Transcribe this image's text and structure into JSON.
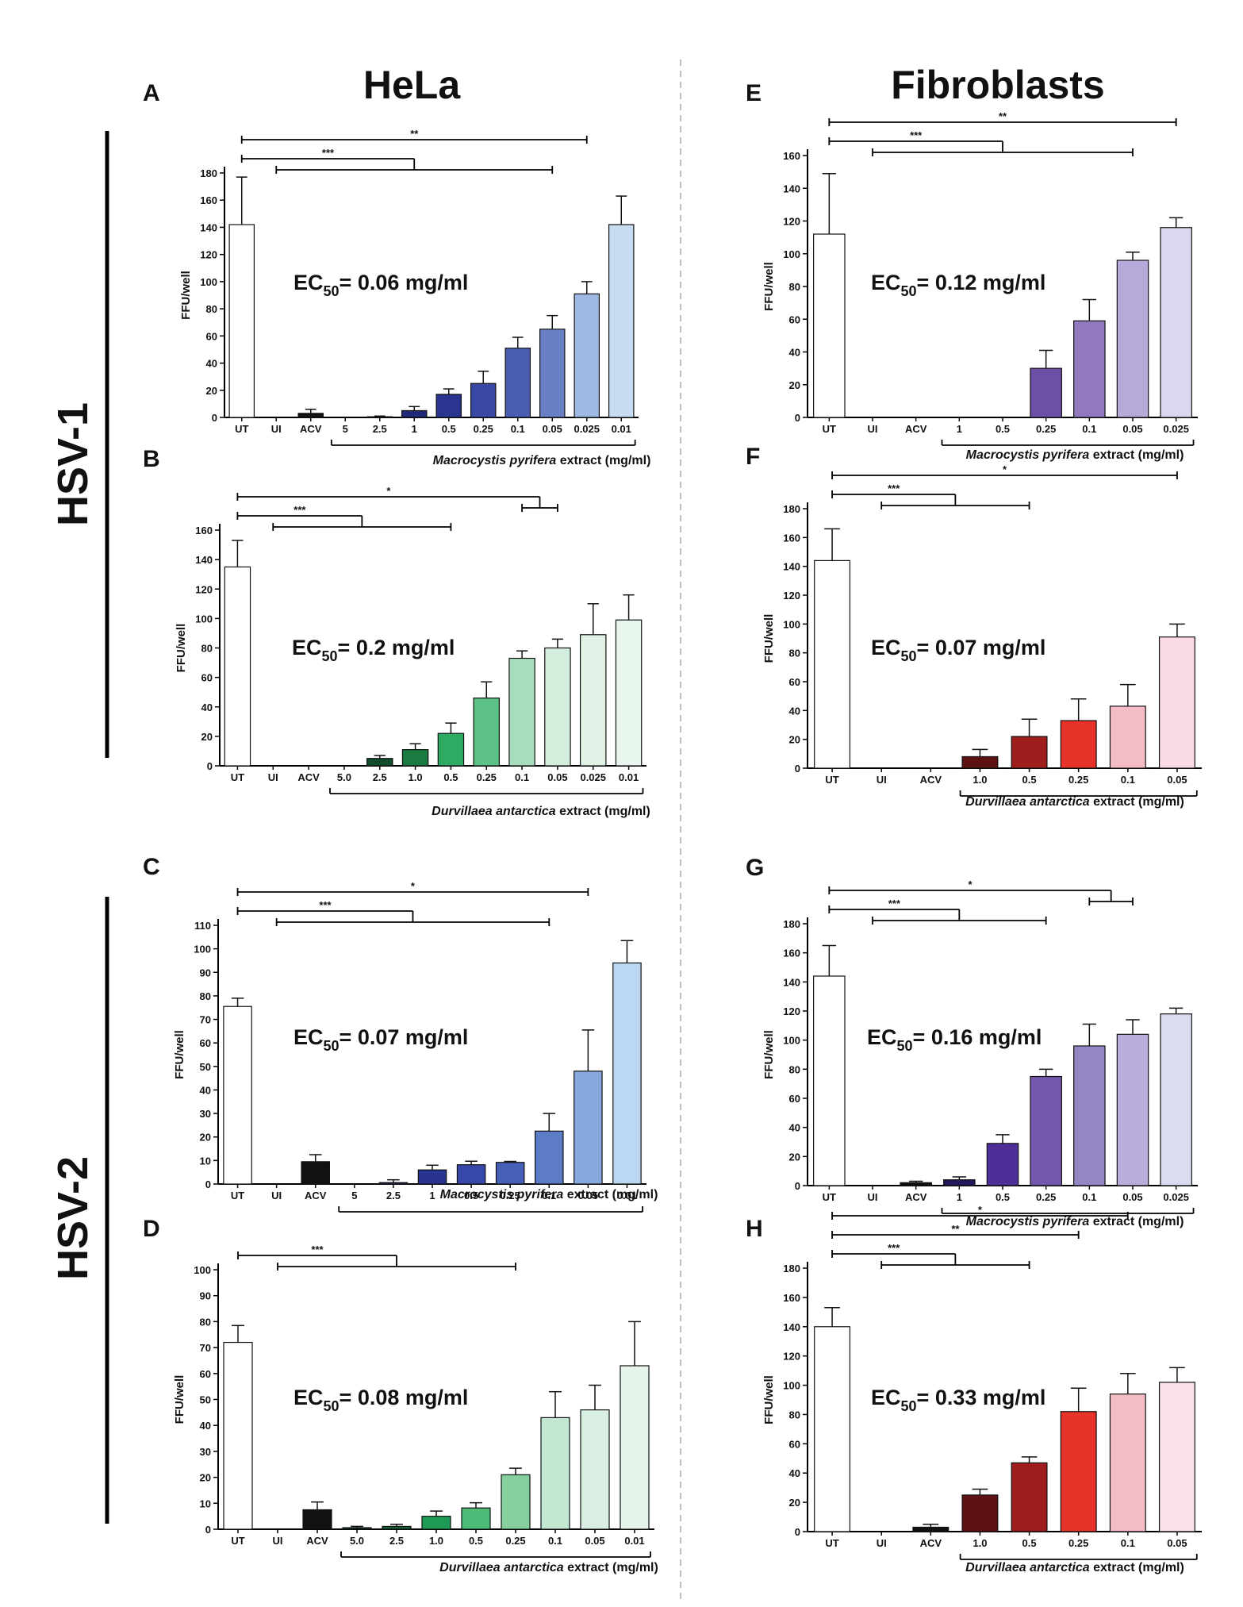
{
  "column_titles": [
    "HeLa",
    "Fibroblasts"
  ],
  "row_titles": [
    "HSV-1",
    "HSV-2"
  ],
  "chart_data": [
    {
      "panel": "A",
      "type": "bar",
      "ylabel": "FFU/well",
      "ylim": [
        0,
        180
      ],
      "ystep": 20,
      "ec50_prefix": "EC",
      "ec50_sub": "50",
      "ec50_value": "= 0.06 mg/ml",
      "xlabel_italic": "Macrocystis pyrifera",
      "xlabel_rest": " extract (mg/ml)",
      "categories": [
        "UT",
        "UI",
        "ACV",
        "5",
        "2.5",
        "1",
        "0.5",
        "0.25",
        "0.1",
        "0.05",
        "0.025",
        "0.01"
      ],
      "values": [
        142,
        0,
        3,
        0,
        0.5,
        5,
        17,
        25,
        51,
        65,
        91,
        142
      ],
      "errors": [
        35,
        0,
        3,
        0,
        0.5,
        3,
        4,
        9,
        8,
        10,
        9,
        21
      ],
      "colors": [
        "#ffffff",
        "#ffffff",
        "#111111",
        "#ffffff",
        "#1b2070",
        "#20287a",
        "#2a3590",
        "#3848a3",
        "#4a5db1",
        "#6a80c6",
        "#9fb8e3",
        "#c7dcf1"
      ],
      "extract_range": [
        3,
        11
      ],
      "sig": [
        {
          "label": "**",
          "type": "simple",
          "from": 0,
          "to": 10
        },
        {
          "label": "***",
          "type": "bracket",
          "from": 0,
          "to1": 1,
          "to2": 9
        }
      ]
    },
    {
      "panel": "B",
      "type": "bar",
      "ylabel": "FFU/well",
      "ylim": [
        0,
        160
      ],
      "ystep": 20,
      "ec50_prefix": "EC",
      "ec50_sub": "50",
      "ec50_value": "= 0.2 mg/ml",
      "xlabel_italic": "Durvillaea antarctica",
      "xlabel_rest": " extract (mg/ml)",
      "categories": [
        "UT",
        "UI",
        "ACV",
        "5.0",
        "2.5",
        "1.0",
        "0.5",
        "0.25",
        "0.1",
        "0.05",
        "0.025",
        "0.01"
      ],
      "values": [
        135,
        0,
        0,
        0,
        5,
        11,
        22,
        46,
        73,
        80,
        89,
        99
      ],
      "errors": [
        18,
        0,
        0,
        0,
        2,
        4,
        7,
        11,
        5,
        6,
        21,
        17
      ],
      "colors": [
        "#ffffff",
        "#ffffff",
        "#ffffff",
        "#ffffff",
        "#0f4d2a",
        "#1a7a40",
        "#2eaa62",
        "#5cc285",
        "#a7dcbd",
        "#d3eedd",
        "#e1f3e7",
        "#e9f6ee"
      ],
      "extract_range": [
        3,
        11
      ],
      "sig": [
        {
          "label": "*",
          "type": "bracket",
          "from": 0,
          "to1": 8,
          "to2": 9
        },
        {
          "label": "***",
          "type": "bracket",
          "from": 0,
          "to1": 1,
          "to2": 6
        }
      ]
    },
    {
      "panel": "C",
      "type": "bar",
      "ylabel": "FFU/well",
      "ylim": [
        0,
        110
      ],
      "ystep": 10,
      "ec50_prefix": "EC",
      "ec50_sub": "50",
      "ec50_value": "= 0.07 mg/ml",
      "xlabel_italic": "Macrocystis pyrifera",
      "xlabel_rest": " extract (mg/ml)",
      "categories": [
        "UT",
        "UI",
        "ACV",
        "5",
        "2.5",
        "1",
        "0.5",
        "0.25",
        "0.1",
        "0.05",
        "0.01"
      ],
      "values": [
        75.5,
        0,
        9.5,
        0,
        0.6,
        6,
        8.2,
        9.2,
        22.5,
        48,
        94
      ],
      "errors": [
        3.5,
        0,
        3,
        0,
        1.2,
        2,
        1.5,
        0.4,
        7.5,
        17.5,
        9.5
      ],
      "colors": [
        "#ffffff",
        "#ffffff",
        "#111111",
        "#ffffff",
        "#1b2070",
        "#28338f",
        "#3748a8",
        "#4560b6",
        "#5d7cc6",
        "#87a8dd",
        "#bcd7f1"
      ],
      "extract_range": [
        3,
        10
      ],
      "sig": [
        {
          "label": "*",
          "type": "simple",
          "from": 0,
          "to": 9
        },
        {
          "label": "***",
          "type": "bracket",
          "from": 0,
          "to1": 1,
          "to2": 8
        }
      ]
    },
    {
      "panel": "D",
      "type": "bar",
      "ylabel": "FFU/well",
      "ylim": [
        0,
        100
      ],
      "ystep": 10,
      "ec50_prefix": "EC",
      "ec50_sub": "50",
      "ec50_value": "= 0.08 mg/ml",
      "xlabel_italic": "Durvillaea antarctica",
      "xlabel_rest": " extract (mg/ml)",
      "categories": [
        "UT",
        "UI",
        "ACV",
        "5.0",
        "2.5",
        "1.0",
        "0.5",
        "0.25",
        "0.1",
        "0.05",
        "0.01"
      ],
      "values": [
        72,
        0,
        7.5,
        0.6,
        1.1,
        5,
        8.2,
        21,
        43,
        46,
        63
      ],
      "errors": [
        6.5,
        0,
        3,
        0.5,
        0.8,
        2,
        2,
        2.5,
        10,
        9.5,
        17
      ],
      "colors": [
        "#ffffff",
        "#ffffff",
        "#111111",
        "#0d3d22",
        "#145c33",
        "#1f9a55",
        "#4dbb77",
        "#86cf9f",
        "#c4e7d1",
        "#d8efe1",
        "#e6f5ec"
      ],
      "extract_range": [
        3,
        10
      ],
      "sig": [
        {
          "label": "***",
          "type": "bracket",
          "from": 0,
          "to1": 1,
          "to2": 7
        }
      ]
    },
    {
      "panel": "E",
      "type": "bar",
      "ylabel": "FFU/well",
      "ylim": [
        0,
        160
      ],
      "ystep": 20,
      "ec50_prefix": "EC",
      "ec50_sub": "50",
      "ec50_value": "= 0.12 mg/ml",
      "xlabel_italic": "Macrocystis pyrifera",
      "xlabel_rest": " extract (mg/ml)",
      "categories": [
        "UT",
        "UI",
        "ACV",
        "1",
        "0.5",
        "0.25",
        "0.1",
        "0.05",
        "0.025"
      ],
      "values": [
        112,
        0,
        0,
        0,
        0,
        30,
        59,
        96,
        116
      ],
      "errors": [
        37,
        0,
        0,
        0,
        0,
        11,
        13,
        5,
        6
      ],
      "colors": [
        "#ffffff",
        "#ffffff",
        "#ffffff",
        "#ffffff",
        "#ffffff",
        "#6d4fa8",
        "#9079bd",
        "#b7a9d9",
        "#dad7ef"
      ],
      "extract_range": [
        3,
        8
      ],
      "sig": [
        {
          "label": "**",
          "type": "simple",
          "from": 0,
          "to": 8
        },
        {
          "label": "***",
          "type": "bracket",
          "from": 0,
          "to1": 1,
          "to2": 7
        }
      ]
    },
    {
      "panel": "F",
      "type": "bar",
      "ylabel": "FFU/well",
      "ylim": [
        0,
        180
      ],
      "ystep": 20,
      "ec50_prefix": "EC",
      "ec50_sub": "50",
      "ec50_value": "= 0.07 mg/ml",
      "xlabel_italic": "Durvillaea antarctica",
      "xlabel_rest": " extract (mg/ml)",
      "categories": [
        "UT",
        "UI",
        "ACV",
        "1.0",
        "0.5",
        "0.25",
        "0.1",
        "0.05"
      ],
      "values": [
        144,
        0,
        0,
        8,
        22,
        33,
        43,
        91
      ],
      "errors": [
        22,
        0,
        0,
        5,
        12,
        15,
        15,
        9
      ],
      "colors": [
        "#ffffff",
        "#ffffff",
        "#ffffff",
        "#5c1212",
        "#9e1d1d",
        "#e8332b",
        "#f4bcc6",
        "#fadbe3"
      ],
      "extract_range": [
        3,
        7
      ],
      "sig": [
        {
          "label": "*",
          "type": "simple",
          "from": 0,
          "to": 7
        },
        {
          "label": "***",
          "type": "bracket",
          "from": 0,
          "to1": 1,
          "to2": 4
        }
      ]
    },
    {
      "panel": "G",
      "type": "bar",
      "ylabel": "FFU/well",
      "ylim": [
        0,
        180
      ],
      "ystep": 20,
      "ec50_prefix": "EC",
      "ec50_sub": "50",
      "ec50_value": "= 0.16 mg/ml",
      "xlabel_italic": "Macrocystis pyrifera",
      "xlabel_rest": " extract (mg/ml)",
      "categories": [
        "UT",
        "UI",
        "ACV",
        "1",
        "0.5",
        "0.25",
        "0.1",
        "0.05",
        "0.025"
      ],
      "values": [
        144,
        0,
        2,
        4,
        29,
        75,
        96,
        104,
        118
      ],
      "errors": [
        21,
        0,
        1,
        2,
        6,
        5,
        15,
        10,
        4
      ],
      "colors": [
        "#ffffff",
        "#ffffff",
        "#111111",
        "#24185c",
        "#4f2e98",
        "#7558ab",
        "#9486c3",
        "#b9aedb",
        "#dadcf0"
      ],
      "extract_range": [
        3,
        8
      ],
      "sig": [
        {
          "label": "*",
          "type": "bracket",
          "from": 0,
          "to1": 6,
          "to2": 7
        },
        {
          "label": "***",
          "type": "bracket",
          "from": 0,
          "to1": 1,
          "to2": 5
        }
      ]
    },
    {
      "panel": "H",
      "type": "bar",
      "ylabel": "FFU/well",
      "ylim": [
        0,
        180
      ],
      "ystep": 20,
      "ec50_prefix": "EC",
      "ec50_sub": "50",
      "ec50_value": "= 0.33 mg/ml",
      "xlabel_italic": "Durvillaea antarctica",
      "xlabel_rest": " extract (mg/ml)",
      "categories": [
        "UT",
        "UI",
        "ACV",
        "1.0",
        "0.5",
        "0.25",
        "0.1",
        "0.05"
      ],
      "values": [
        140,
        0,
        3,
        25,
        47,
        82,
        94,
        102
      ],
      "errors": [
        13,
        0,
        2,
        4,
        4,
        16,
        14,
        10
      ],
      "colors": [
        "#ffffff",
        "#ffffff",
        "#111111",
        "#5e1213",
        "#9e1c1e",
        "#e8332b",
        "#f3bcc6",
        "#fae0e7"
      ],
      "extract_range": [
        3,
        7
      ],
      "sig": [
        {
          "label": "*",
          "type": "simple",
          "from": 0,
          "to": 6
        },
        {
          "label": "**",
          "type": "simple",
          "from": 0,
          "to": 5
        },
        {
          "label": "***",
          "type": "bracket",
          "from": 0,
          "to1": 1,
          "to2": 4
        }
      ]
    }
  ]
}
